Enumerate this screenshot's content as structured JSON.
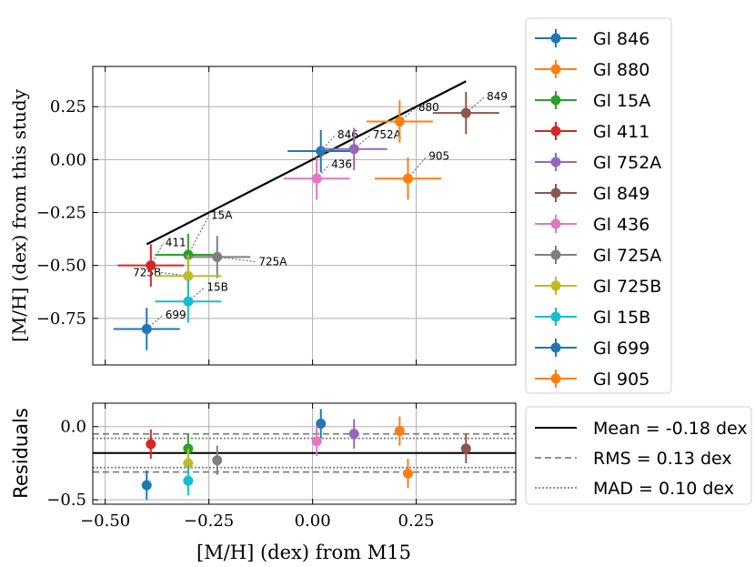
{
  "chart_data": [
    {
      "type": "scatter",
      "name": "main",
      "xlabel": "[M/H] (dex) from M15",
      "ylabel": "[M/H] (dex) from this study",
      "xlim": [
        -0.53,
        0.49
      ],
      "ylim": [
        -0.97,
        0.44
      ],
      "xticks": [
        -0.5,
        -0.25,
        0.0,
        0.25
      ],
      "yticks": [
        -0.75,
        -0.5,
        -0.25,
        0.0,
        0.25
      ],
      "ytick_labels": [
        "−0.75",
        "−0.50",
        "−0.25",
        "0.00",
        "0.25"
      ],
      "grid": true,
      "reference_line": {
        "x": [
          -0.4,
          0.37
        ],
        "y": [
          -0.4,
          0.37
        ]
      },
      "points": [
        {
          "legend": "Gl 846",
          "label": "846",
          "x": 0.02,
          "y": 0.04,
          "xerr": 0.08,
          "yerr": 0.1,
          "color": "#1f77b4",
          "label_at": [
            0.06,
            0.1
          ]
        },
        {
          "legend": "Gl 880",
          "label": "880",
          "x": 0.21,
          "y": 0.18,
          "xerr": 0.08,
          "yerr": 0.1,
          "color": "#ff7f0e",
          "label_at": [
            0.255,
            0.23
          ]
        },
        {
          "legend": "Gl 15A",
          "label": "15A",
          "x": -0.3,
          "y": -0.45,
          "xerr": 0.08,
          "yerr": 0.1,
          "color": "#2ca02c",
          "label_at": [
            -0.245,
            -0.28
          ]
        },
        {
          "legend": "Gl 411",
          "label": "411",
          "x": -0.39,
          "y": -0.5,
          "xerr": 0.08,
          "yerr": 0.1,
          "color": "#d62728",
          "label_at": [
            -0.355,
            -0.41
          ]
        },
        {
          "legend": "Gl 752A",
          "label": "752A",
          "x": 0.1,
          "y": 0.05,
          "xerr": 0.08,
          "yerr": 0.1,
          "color": "#9467bd",
          "label_at": [
            0.145,
            0.1
          ]
        },
        {
          "legend": "Gl 849",
          "label": "849",
          "x": 0.37,
          "y": 0.22,
          "xerr": 0.08,
          "yerr": 0.1,
          "color": "#8c564b",
          "label_at": [
            0.42,
            0.28
          ]
        },
        {
          "legend": "Gl 436",
          "label": "436",
          "x": 0.01,
          "y": -0.09,
          "xerr": 0.08,
          "yerr": 0.1,
          "color": "#e377c2",
          "label_at": [
            0.045,
            -0.04
          ]
        },
        {
          "legend": "Gl 725A",
          "label": "725A",
          "x": -0.23,
          "y": -0.46,
          "xerr": 0.08,
          "yerr": 0.1,
          "color": "#7f7f7f",
          "label_at": [
            -0.13,
            -0.5
          ]
        },
        {
          "legend": "Gl 725B",
          "label": "725B",
          "x": -0.3,
          "y": -0.55,
          "xerr": 0.08,
          "yerr": 0.1,
          "color": "#bcbd22",
          "label_at": [
            -0.4,
            -0.55
          ]
        },
        {
          "legend": "Gl 15B",
          "label": "15B",
          "x": -0.3,
          "y": -0.67,
          "xerr": 0.08,
          "yerr": 0.1,
          "color": "#17becf",
          "label_at": [
            -0.255,
            -0.62
          ]
        },
        {
          "legend": "Gl 699",
          "label": "699",
          "x": -0.4,
          "y": -0.8,
          "xerr": 0.08,
          "yerr": 0.1,
          "color": "#1f77b4",
          "label_at": [
            -0.355,
            -0.75
          ]
        },
        {
          "legend": "Gl 905",
          "label": "905",
          "x": 0.23,
          "y": -0.09,
          "xerr": 0.08,
          "yerr": 0.1,
          "color": "#ff7f0e",
          "label_at": [
            0.28,
            0.0
          ]
        }
      ]
    },
    {
      "type": "scatter",
      "name": "residuals",
      "xlabel": "[M/H] (dex) from M15",
      "ylabel": "Residuals",
      "xlim": [
        -0.53,
        0.49
      ],
      "ylim": [
        -0.53,
        0.16
      ],
      "xticks": [
        -0.5,
        -0.25,
        0.0,
        0.25
      ],
      "xtick_labels": [
        "−0.50",
        "−0.25",
        "0.00",
        "0.25"
      ],
      "yticks": [
        -0.5,
        0.0
      ],
      "ytick_labels": [
        "−0.5",
        "0.0"
      ],
      "grid": true,
      "hlines": [
        {
          "y": -0.18,
          "style": "solid",
          "legend": "Mean = -0.18 dex"
        },
        {
          "y": -0.05,
          "style": "dashed",
          "legend": "RMS = 0.13 dex"
        },
        {
          "y": -0.31,
          "style": "dashed"
        },
        {
          "y": -0.08,
          "style": "dotted",
          "legend": "MAD = 0.10 dex"
        },
        {
          "y": -0.28,
          "style": "dotted"
        }
      ],
      "points": [
        {
          "x": 0.02,
          "y": 0.02,
          "yerr": 0.1,
          "color": "#1f77b4"
        },
        {
          "x": 0.21,
          "y": -0.03,
          "yerr": 0.1,
          "color": "#ff7f0e"
        },
        {
          "x": -0.3,
          "y": -0.15,
          "yerr": 0.1,
          "color": "#2ca02c"
        },
        {
          "x": -0.39,
          "y": -0.12,
          "yerr": 0.1,
          "color": "#d62728"
        },
        {
          "x": 0.1,
          "y": -0.05,
          "yerr": 0.1,
          "color": "#9467bd"
        },
        {
          "x": 0.37,
          "y": -0.15,
          "yerr": 0.1,
          "color": "#8c564b"
        },
        {
          "x": 0.01,
          "y": -0.1,
          "yerr": 0.1,
          "color": "#e377c2"
        },
        {
          "x": -0.23,
          "y": -0.23,
          "yerr": 0.1,
          "color": "#7f7f7f"
        },
        {
          "x": -0.3,
          "y": -0.25,
          "yerr": 0.1,
          "color": "#bcbd22"
        },
        {
          "x": -0.3,
          "y": -0.37,
          "yerr": 0.1,
          "color": "#17becf"
        },
        {
          "x": -0.4,
          "y": -0.4,
          "yerr": 0.1,
          "color": "#1f77b4"
        },
        {
          "x": 0.23,
          "y": -0.32,
          "yerr": 0.1,
          "color": "#ff7f0e"
        }
      ]
    }
  ]
}
